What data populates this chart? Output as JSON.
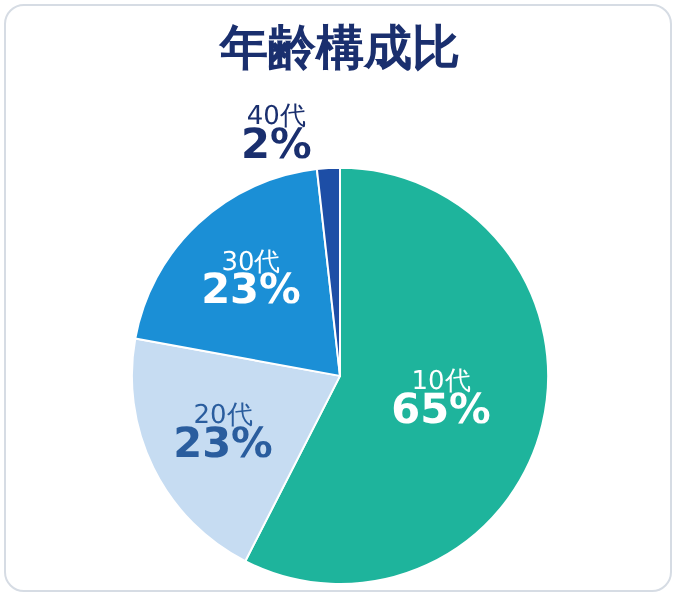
{
  "chart_data": {
    "type": "pie",
    "title": "年齢構成比",
    "categories": [
      "10代",
      "20代",
      "30代",
      "40代"
    ],
    "values": [
      65,
      23,
      23,
      2
    ],
    "value_labels": [
      "65%",
      "23%",
      "23%",
      "2%"
    ],
    "colors": [
      "#1eb49c",
      "#c6dcf2",
      "#1b8fd6",
      "#1d4ea6"
    ],
    "legend": false
  }
}
